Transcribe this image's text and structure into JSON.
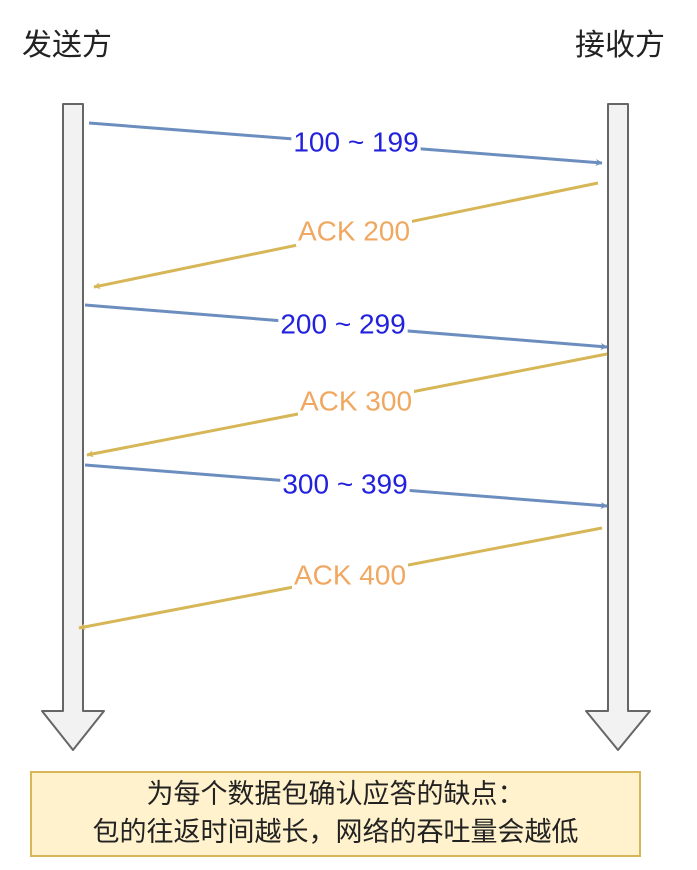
{
  "parties": {
    "sender": "发送方",
    "receiver": "接收方"
  },
  "messages": [
    {
      "label": "100 ~ 199",
      "direction": "sender-to-receiver",
      "kind": "data"
    },
    {
      "label": "ACK 200",
      "direction": "receiver-to-sender",
      "kind": "ack"
    },
    {
      "label": "200 ~ 299",
      "direction": "sender-to-receiver",
      "kind": "data"
    },
    {
      "label": "ACK 300",
      "direction": "receiver-to-sender",
      "kind": "ack"
    },
    {
      "label": "300 ~ 399",
      "direction": "sender-to-receiver",
      "kind": "data"
    },
    {
      "label": "ACK 400",
      "direction": "receiver-to-sender",
      "kind": "ack"
    }
  ],
  "note": {
    "line1": "为每个数据包确认应答的缺点：",
    "line2": "包的往返时间越长，网络的吞吐量会越低"
  },
  "colors": {
    "data_line": "#6c8ebf",
    "data_text": "#2222dd",
    "ack_line": "#d6b656",
    "ack_text": "#f0a860",
    "lifeline_fill": "#f2f2f2",
    "lifeline_stroke": "#666666",
    "note_fill": "#fff2cc",
    "note_stroke": "#d6b656"
  }
}
